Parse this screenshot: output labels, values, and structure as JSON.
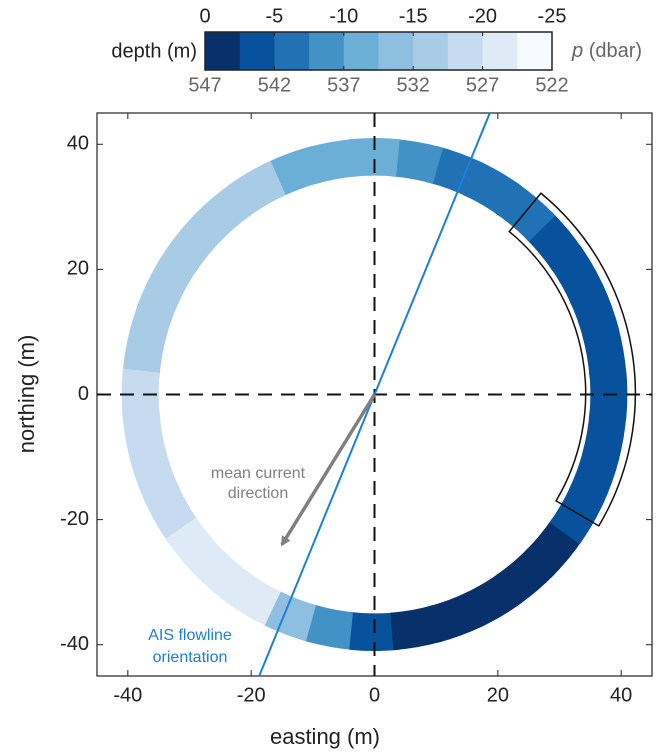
{
  "chart_data": {
    "type": "scatter",
    "x_label": "easting (m)",
    "y_label": "northing (m)",
    "xlim": [
      -45,
      45
    ],
    "ylim": [
      -45,
      45
    ],
    "xticks": [
      -40,
      -20,
      0,
      20,
      40
    ],
    "yticks": [
      -40,
      -20,
      0,
      20,
      40
    ],
    "x": [
      38,
      37.4,
      35.7,
      32.9,
      29.1,
      24.4,
      19,
      13,
      6.6,
      0,
      -6.6,
      -13,
      -19,
      -24.4,
      -29.1,
      -32.9,
      -35.7,
      -37.4,
      -38,
      -37.4,
      -35.7,
      -32.9,
      -29.1,
      -24.4,
      -19,
      -13,
      -6.6,
      0,
      6.6,
      13,
      19,
      24.4,
      29.1,
      32.9,
      35.7,
      37.4
    ],
    "y": [
      0,
      6.6,
      13,
      19,
      24.4,
      29.1,
      32.9,
      35.7,
      37.4,
      38,
      37.4,
      35.7,
      32.9,
      29.1,
      24.4,
      19,
      13,
      6.6,
      0,
      -6.6,
      -13,
      -19,
      -24.4,
      -29.1,
      -32.9,
      -35.7,
      -37.4,
      -38,
      -37.4,
      -35.7,
      -32.9,
      -29.1,
      -24.4,
      -19,
      -13,
      -6.6
    ],
    "depth": [
      -3.5,
      -3.5,
      -3.5,
      -4,
      -4.5,
      -5,
      -5.5,
      -6.5,
      -8.5,
      -10,
      -11,
      -12,
      -15,
      -16,
      -16.5,
      -17,
      -17,
      -17,
      -17.5,
      -18,
      -18.5,
      -19,
      -20,
      -21,
      -21.5,
      -13,
      -9,
      -4,
      -1,
      -0.5,
      -0.5,
      -1,
      -1.5,
      -2.5,
      -3,
      -3
    ],
    "colorbar": {
      "label": "depth (m)",
      "p_label": {
        "symbol": "p",
        "unit": "(dbar)"
      },
      "clim": [
        0,
        -25
      ],
      "ticks": [
        0,
        -5,
        -10,
        -15,
        -20,
        -25
      ],
      "plim": [
        547,
        522
      ],
      "pticks": [
        547,
        542,
        537,
        532,
        527,
        522
      ],
      "colors": [
        "#08306b",
        "#08519c",
        "#2171b5",
        "#4292c6",
        "#6baed6",
        "#8fbfe0",
        "#a8cce6",
        "#c6dbef",
        "#deebf7",
        "#f7fbff"
      ]
    },
    "current_arrow": {
      "x": [
        0,
        -15
      ],
      "y": [
        0,
        -24
      ],
      "color": "#808080",
      "label": [
        "mean current",
        "direction"
      ]
    },
    "ais_line": {
      "x": [
        -18.7,
        18.7
      ],
      "y": [
        -45,
        45
      ],
      "color": "#1a80d8",
      "label": [
        "AIS flowline",
        "orientation"
      ]
    },
    "sector": {
      "r": [
        34,
        42
      ],
      "angles": [
        -30,
        50
      ]
    }
  }
}
